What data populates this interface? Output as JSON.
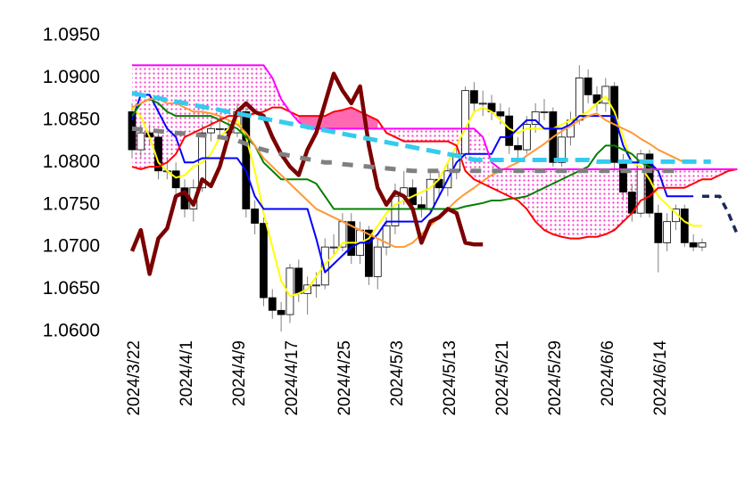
{
  "chart_data": {
    "type": "candlestick",
    "categories": [
      "2024/3/22",
      null,
      null,
      null,
      null,
      null,
      "2024/4/1",
      null,
      null,
      null,
      null,
      null,
      "2024/4/9",
      null,
      null,
      null,
      null,
      null,
      "2024/4/17",
      null,
      null,
      null,
      null,
      null,
      "2024/4/25",
      null,
      null,
      null,
      null,
      null,
      "2024/5/3",
      null,
      null,
      null,
      null,
      null,
      "2024/5/13",
      null,
      null,
      null,
      null,
      null,
      "2024/5/21",
      null,
      null,
      null,
      null,
      null,
      "2024/5/29",
      null,
      null,
      null,
      null,
      null,
      "2024/6/6",
      null,
      null,
      null,
      null,
      null,
      "2024/6/14",
      null,
      null,
      null,
      null,
      null,
      null,
      null,
      null,
      null
    ],
    "open": [
      1.086,
      1.0815,
      1.0835,
      1.083,
      1.079,
      1.079,
      1.077,
      1.0745,
      1.077,
      1.0835,
      1.084,
      1.084,
      1.0835,
      1.086,
      1.0745,
      1.0728,
      1.064,
      1.0625,
      1.062,
      1.0675,
      1.0645,
      1.0655,
      1.0655,
      1.07,
      1.07,
      1.073,
      1.069,
      1.072,
      1.0665,
      1.07,
      1.0725,
      1.076,
      1.077,
      1.075,
      1.0745,
      1.078,
      1.077,
      1.079,
      1.081,
      1.0885,
      1.087,
      1.087,
      1.086,
      1.0855,
      1.082,
      1.0815,
      1.0845,
      1.086,
      1.086,
      1.08,
      1.083,
      1.085,
      1.09,
      1.088,
      1.087,
      1.089,
      1.08,
      1.0765,
      1.074,
      1.081,
      1.074,
      1.0705,
      1.073,
      1.0745,
      1.0705,
      1.07,
      null,
      null,
      null,
      null
    ],
    "high": [
      1.087,
      1.0845,
      1.0845,
      1.084,
      1.0805,
      1.08,
      1.078,
      1.078,
      1.0845,
      1.085,
      1.0855,
      1.085,
      1.087,
      1.0865,
      1.0755,
      1.0735,
      1.065,
      1.0635,
      1.068,
      1.0685,
      1.0665,
      1.067,
      1.071,
      1.0715,
      1.074,
      1.074,
      1.073,
      1.0725,
      1.071,
      1.0735,
      1.0775,
      1.079,
      1.078,
      1.076,
      1.079,
      1.079,
      1.08,
      1.082,
      1.089,
      1.0895,
      1.0885,
      1.088,
      1.087,
      1.0865,
      1.083,
      1.0855,
      1.087,
      1.0875,
      1.0865,
      1.084,
      1.086,
      1.0915,
      1.091,
      1.089,
      1.09,
      1.0895,
      1.081,
      1.0775,
      1.0815,
      1.0815,
      1.075,
      1.074,
      1.075,
      1.075,
      1.0715,
      1.071,
      null,
      null,
      null,
      null
    ],
    "low": [
      1.0805,
      1.0805,
      1.082,
      1.078,
      1.078,
      1.076,
      1.0735,
      1.073,
      1.0765,
      1.0825,
      1.083,
      1.0825,
      1.083,
      1.0735,
      1.0715,
      1.063,
      1.0615,
      1.06,
      1.061,
      1.0635,
      1.062,
      1.064,
      1.065,
      1.069,
      1.0695,
      1.068,
      1.068,
      1.0655,
      1.065,
      1.069,
      1.0715,
      1.075,
      1.074,
      1.0735,
      1.074,
      1.076,
      1.076,
      1.078,
      1.0805,
      1.086,
      1.0855,
      1.085,
      1.0845,
      1.081,
      1.0805,
      1.081,
      1.0835,
      1.085,
      1.0795,
      1.0795,
      1.082,
      1.0845,
      1.087,
      1.086,
      1.086,
      1.079,
      1.0755,
      1.073,
      1.0735,
      1.0735,
      1.067,
      1.0695,
      1.072,
      1.07,
      1.0695,
      1.0695,
      null,
      null,
      null,
      null
    ],
    "close": [
      1.0815,
      1.0835,
      1.083,
      1.079,
      1.079,
      1.077,
      1.0745,
      1.077,
      1.0835,
      1.084,
      1.084,
      1.0835,
      1.086,
      1.0745,
      1.0728,
      1.064,
      1.0625,
      1.062,
      1.0675,
      1.0645,
      1.0655,
      1.0655,
      1.07,
      1.07,
      1.073,
      1.069,
      1.072,
      1.0665,
      1.07,
      1.0725,
      1.076,
      1.077,
      1.075,
      1.0745,
      1.078,
      1.077,
      1.079,
      1.081,
      1.0885,
      1.087,
      1.087,
      1.086,
      1.0855,
      1.082,
      1.0815,
      1.0845,
      1.086,
      1.086,
      1.08,
      1.083,
      1.085,
      1.09,
      1.088,
      1.087,
      1.089,
      1.08,
      1.0765,
      1.074,
      1.081,
      1.074,
      1.0705,
      1.073,
      1.0745,
      1.0705,
      1.07,
      1.0705,
      null,
      null,
      null,
      null
    ],
    "up_color": "#ffffff",
    "down_color": "#000000",
    "wick_color": "#808080",
    "cloud": {
      "between": [
        4,
        5
      ],
      "color": "#ff33cc",
      "bull_color": "#ff69b4"
    },
    "series": [
      {
        "color": "#ffff00",
        "width": 2,
        "values": [
          1.0865,
          1.0855,
          1.083,
          1.08,
          1.079,
          1.0782,
          1.0785,
          1.0795,
          1.08,
          1.081,
          1.083,
          1.084,
          1.085,
          1.083,
          1.079,
          1.074,
          1.07,
          1.066,
          1.0642,
          1.0645,
          1.065,
          1.0665,
          1.068,
          1.069,
          1.0705,
          1.0705,
          1.0705,
          1.071,
          1.0725,
          1.074,
          1.075,
          1.0755,
          1.076,
          1.0765,
          1.077,
          1.078,
          1.08,
          1.082,
          1.084,
          1.086,
          1.0865,
          1.086,
          1.085,
          1.084,
          1.0835,
          1.084,
          1.084,
          1.084,
          1.084,
          1.0845,
          1.085,
          1.0855,
          1.086,
          1.087,
          1.0878,
          1.086,
          1.083,
          1.08,
          1.0795,
          1.078,
          1.076,
          1.075,
          1.074,
          1.073,
          1.0725,
          1.0725,
          null,
          null,
          null,
          null
        ]
      },
      {
        "color": "#0000ff",
        "width": 2,
        "values": [
          1.085,
          1.088,
          1.088,
          1.086,
          1.084,
          1.083,
          1.08,
          1.08,
          1.0805,
          1.0805,
          1.0805,
          1.0805,
          1.0805,
          1.079,
          1.076,
          1.0745,
          1.0745,
          1.0745,
          1.0745,
          1.0745,
          1.0745,
          1.071,
          1.067,
          1.068,
          1.069,
          1.07,
          1.0705,
          1.0705,
          1.0715,
          1.073,
          1.073,
          1.073,
          1.073,
          1.073,
          1.074,
          1.076,
          1.078,
          1.08,
          1.081,
          1.081,
          1.081,
          1.081,
          1.083,
          1.083,
          1.084,
          1.085,
          1.085,
          1.084,
          1.084,
          1.084,
          1.0845,
          1.0855,
          1.0855,
          1.0855,
          1.0855,
          1.0855,
          1.082,
          1.08,
          1.08,
          1.08,
          1.079,
          1.076,
          1.076,
          1.076,
          1.076,
          null,
          null,
          null,
          null,
          null
        ]
      },
      {
        "color": "#008000",
        "width": 2,
        "values": [
          1.0855,
          1.087,
          1.0875,
          1.087,
          1.086,
          1.0855,
          1.0855,
          1.0855,
          1.0855,
          1.0855,
          1.085,
          1.0845,
          1.084,
          1.083,
          1.082,
          1.08,
          1.079,
          1.078,
          1.078,
          1.078,
          1.078,
          1.0775,
          1.076,
          1.0745,
          1.0745,
          1.0745,
          1.0745,
          1.0745,
          1.0745,
          1.0745,
          1.0745,
          1.0745,
          1.0745,
          1.0745,
          1.0745,
          1.0745,
          1.0745,
          1.0745,
          1.0748,
          1.075,
          1.0752,
          1.0755,
          1.0755,
          1.0757,
          1.0758,
          1.076,
          1.0765,
          1.077,
          1.0775,
          1.078,
          1.0785,
          1.079,
          1.0795,
          1.081,
          1.082,
          1.082,
          1.0815,
          1.081,
          1.08,
          1.0795,
          1.079,
          null,
          null,
          null,
          null,
          null,
          null,
          null,
          null,
          null
        ]
      },
      {
        "color": "#ff9933",
        "width": 2,
        "values": [
          1.0865,
          1.087,
          1.0875,
          1.0875,
          1.087,
          1.087,
          1.0865,
          1.086,
          1.086,
          1.0858,
          1.0855,
          1.085,
          1.0845,
          1.0835,
          1.082,
          1.0805,
          1.0795,
          1.0785,
          1.0775,
          1.0765,
          1.0755,
          1.0745,
          1.074,
          1.0735,
          1.073,
          1.0725,
          1.072,
          1.0715,
          1.071,
          1.0705,
          1.07,
          1.07,
          1.0705,
          1.0715,
          1.0725,
          1.0735,
          1.0745,
          1.0755,
          1.0763,
          1.077,
          1.0778,
          1.0785,
          1.079,
          1.0795,
          1.08,
          1.0808,
          1.0815,
          1.0822,
          1.083,
          1.0837,
          1.0843,
          1.085,
          1.0855,
          1.0858,
          1.085,
          1.0845,
          1.084,
          1.0835,
          1.0828,
          1.0822,
          1.0815,
          1.081,
          1.0805,
          1.08,
          null,
          null,
          null,
          null,
          null,
          null
        ]
      },
      {
        "color": "#ff0000",
        "width": 2,
        "values": [
          1.0795,
          1.0792,
          1.0795,
          1.0795,
          1.08,
          1.081,
          1.083,
          1.0835,
          1.084,
          1.0845,
          1.085,
          1.0855,
          1.0855,
          1.0855,
          1.0858,
          1.086,
          1.0865,
          1.0865,
          1.086,
          1.0855,
          1.0855,
          1.0855,
          1.0855,
          1.086,
          1.0862,
          1.0865,
          1.086,
          1.0855,
          1.085,
          1.0835,
          1.083,
          1.0825,
          1.0825,
          1.0825,
          1.0825,
          1.0825,
          1.0825,
          1.082,
          1.079,
          1.078,
          1.0775,
          1.077,
          1.0765,
          1.076,
          1.0755,
          1.0745,
          1.073,
          1.072,
          1.0715,
          1.0712,
          1.071,
          1.071,
          1.0712,
          1.0712,
          1.0715,
          1.072,
          1.073,
          1.074,
          1.0755,
          1.076,
          1.077,
          1.077,
          1.077,
          1.077,
          1.0775,
          1.078,
          1.078,
          1.0785,
          1.079,
          1.0792
        ]
      },
      {
        "color": "#ff00ff",
        "width": 2,
        "values": [
          1.0915,
          1.0915,
          1.0915,
          1.0915,
          1.0915,
          1.0915,
          1.0915,
          1.0915,
          1.0915,
          1.0915,
          1.0915,
          1.0915,
          1.0915,
          1.0915,
          1.0915,
          1.0915,
          1.09,
          1.0875,
          1.086,
          1.0848,
          1.084,
          1.084,
          1.084,
          1.084,
          1.084,
          1.084,
          1.084,
          1.084,
          1.084,
          1.084,
          1.084,
          1.084,
          1.084,
          1.084,
          1.084,
          1.084,
          1.084,
          1.084,
          1.084,
          1.084,
          1.083,
          1.08,
          1.0792,
          1.0792,
          1.0792,
          1.0792,
          1.0792,
          1.0792,
          1.0792,
          1.0792,
          1.0792,
          1.0792,
          1.0792,
          1.0792,
          1.0792,
          1.0792,
          1.0792,
          1.0792,
          1.0792,
          1.0792,
          1.0792,
          1.0792,
          1.0792,
          1.0792,
          1.0792,
          1.0792,
          1.0792,
          1.0792,
          1.0792,
          1.0792
        ]
      },
      {
        "color": "#7b0000",
        "width": 4.5,
        "values": [
          1.0695,
          1.072,
          1.0668,
          1.071,
          1.0722,
          1.076,
          1.0765,
          1.075,
          1.078,
          1.0772,
          1.0795,
          1.0832,
          1.086,
          1.087,
          1.086,
          1.0855,
          1.083,
          1.081,
          1.0795,
          1.0785,
          1.0815,
          1.0835,
          1.087,
          1.0905,
          1.0885,
          1.087,
          1.089,
          1.082,
          1.077,
          1.075,
          1.0765,
          1.076,
          1.0745,
          1.0705,
          1.073,
          1.0735,
          1.0745,
          1.074,
          1.0705,
          1.0703,
          1.0703,
          null,
          null,
          null,
          null,
          null,
          null,
          null,
          null,
          null,
          null,
          null,
          null,
          null,
          null,
          null,
          null,
          null,
          null,
          null,
          null,
          null,
          null,
          null,
          null,
          null,
          null,
          null,
          null,
          null
        ]
      },
      {
        "color": "#808080",
        "width": 5,
        "dash": "12,12",
        "values": [
          1.084,
          1.0839,
          1.0838,
          1.0837,
          1.0836,
          1.0835,
          1.0834,
          1.0833,
          1.0832,
          1.0831,
          1.083,
          1.0828,
          1.0826,
          1.0822,
          1.0818,
          1.0815,
          1.0812,
          1.081,
          1.0808,
          1.0806,
          1.0804,
          1.0802,
          1.08,
          1.08,
          1.0798,
          1.0797,
          1.0796,
          1.0795,
          1.0794,
          1.0793,
          1.0792,
          1.0791,
          1.079,
          1.079,
          1.079,
          1.079,
          1.079,
          1.079,
          1.079,
          1.079,
          1.079,
          1.079,
          1.079,
          1.079,
          1.079,
          1.079,
          1.079,
          1.079,
          1.079,
          1.079,
          1.079,
          1.079,
          1.079,
          1.079,
          1.079,
          1.079,
          1.079,
          1.079,
          1.079,
          1.079,
          1.079,
          1.079,
          1.079,
          1.079,
          null,
          null,
          null,
          null,
          null,
          null
        ]
      },
      {
        "color": "#33ccee",
        "width": 5,
        "dash": "16,8",
        "values": [
          1.0882,
          1.088,
          1.0878,
          1.0876,
          1.0874,
          1.0872,
          1.087,
          1.0868,
          1.0866,
          1.0864,
          1.0862,
          1.086,
          1.0858,
          1.0856,
          1.0854,
          1.0852,
          1.085,
          1.0848,
          1.0846,
          1.0844,
          1.0842,
          1.084,
          1.0838,
          1.0836,
          1.0834,
          1.0832,
          1.083,
          1.0828,
          1.0826,
          1.0824,
          1.0822,
          1.082,
          1.0818,
          1.0816,
          1.0814,
          1.0812,
          1.081,
          1.0808,
          1.0806,
          1.0803,
          1.0803,
          1.0803,
          1.0803,
          1.0803,
          1.0803,
          1.0803,
          1.0803,
          1.0803,
          1.0803,
          1.0803,
          1.0803,
          1.0803,
          1.0803,
          1.0801,
          1.0801,
          1.0801,
          1.0801,
          1.0801,
          1.0801,
          1.0801,
          1.0801,
          1.0801,
          1.0801,
          1.0801,
          1.0801,
          1.0801,
          1.0801,
          null,
          null,
          null
        ]
      },
      {
        "color": "#1a2a5a",
        "width": 3.5,
        "dash": "8,6",
        "values": [
          null,
          null,
          null,
          null,
          null,
          null,
          null,
          null,
          null,
          null,
          null,
          null,
          null,
          null,
          null,
          null,
          null,
          null,
          null,
          null,
          null,
          null,
          null,
          null,
          null,
          null,
          null,
          null,
          null,
          null,
          null,
          null,
          null,
          null,
          null,
          null,
          null,
          null,
          null,
          null,
          null,
          null,
          null,
          null,
          null,
          null,
          null,
          null,
          null,
          null,
          null,
          null,
          null,
          null,
          null,
          null,
          null,
          null,
          null,
          null,
          null,
          null,
          null,
          null,
          null,
          1.076,
          1.076,
          1.076,
          1.074,
          1.0715
        ]
      }
    ],
    "ylim": [
      1.06,
      1.095
    ],
    "yticks": [
      {
        "value": 1.06,
        "label": "1.0600"
      },
      {
        "value": 1.065,
        "label": "1.0650"
      },
      {
        "value": 1.07,
        "label": "1.0700"
      },
      {
        "value": 1.075,
        "label": "1.0750"
      },
      {
        "value": 1.08,
        "label": "1.0800"
      },
      {
        "value": 1.085,
        "label": "1.0850"
      },
      {
        "value": 1.09,
        "label": "1.0900"
      },
      {
        "value": 1.095,
        "label": "1.0950"
      }
    ],
    "grid": false
  }
}
